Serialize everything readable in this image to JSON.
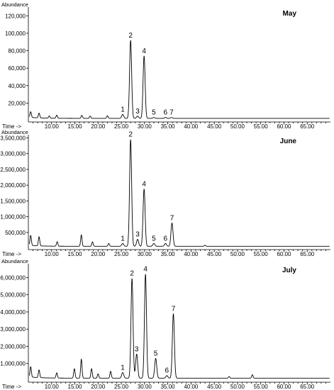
{
  "chart_data": [
    {
      "type": "line",
      "title": "May",
      "ylabel": "Abundance",
      "xlabel": "Time ->",
      "xlim": [
        5,
        70
      ],
      "ylim": [
        0,
        130000
      ],
      "xticks": [
        "10.00",
        "15.00",
        "20.00",
        "25.00",
        "30.00",
        "35.00",
        "40.00",
        "45.00",
        "50.00",
        "55.00",
        "60.00",
        "65.00"
      ],
      "yticks": [
        "20000",
        "40000",
        "60000",
        "80000",
        "100000",
        "120000"
      ],
      "ytick_labels": [
        "20,000",
        "40,000",
        "60,000",
        "80,000",
        "100,000",
        "120,000"
      ],
      "baseline": 2500,
      "peaks": [
        {
          "label": "1",
          "x": 25.3,
          "y": 7000
        },
        {
          "label": "2",
          "x": 27.0,
          "y": 92000
        },
        {
          "label": "3",
          "x": 28.5,
          "y": 5000
        },
        {
          "label": "4",
          "x": 29.9,
          "y": 74000
        },
        {
          "label": "5",
          "x": 32.0,
          "y": 3500
        },
        {
          "label": "6",
          "x": 34.5,
          "y": 3500
        },
        {
          "label": "7",
          "x": 35.8,
          "y": 3500
        }
      ],
      "minor_peaks": [
        {
          "x": 5.5,
          "y": 9000
        },
        {
          "x": 7.3,
          "y": 8000
        },
        {
          "x": 9.5,
          "y": 5000
        },
        {
          "x": 11.1,
          "y": 6000
        },
        {
          "x": 16.5,
          "y": 6000
        },
        {
          "x": 18.3,
          "y": 5000
        },
        {
          "x": 22.0,
          "y": 5500
        }
      ]
    },
    {
      "type": "line",
      "title": "June",
      "ylabel": "Abundance",
      "xlabel": "Time ->",
      "xlim": [
        5,
        70
      ],
      "ylim": [
        0,
        3600000
      ],
      "xticks": [
        "10.00",
        "15.00",
        "20.00",
        "25.00",
        "30.00",
        "35.00",
        "40.00",
        "45.00",
        "50.00",
        "55.00",
        "60.00",
        "65.00"
      ],
      "yticks": [
        "500000",
        "1000000",
        "1500000",
        "2000000",
        "2500000",
        "3000000",
        "3500000"
      ],
      "ytick_labels": [
        "500,000",
        "1,000,000",
        "1,500,000",
        "2,000,000",
        "2,500,000",
        "3,000,000",
        "3,500,000"
      ],
      "baseline": 60000,
      "peaks": [
        {
          "label": "1",
          "x": 25.3,
          "y": 150000
        },
        {
          "label": "2",
          "x": 27.0,
          "y": 3450000
        },
        {
          "label": "3",
          "x": 28.5,
          "y": 280000
        },
        {
          "label": "4",
          "x": 29.9,
          "y": 1880000
        },
        {
          "label": "5",
          "x": 32.0,
          "y": 150000
        },
        {
          "label": "6",
          "x": 34.5,
          "y": 150000
        },
        {
          "label": "7",
          "x": 35.9,
          "y": 800000
        }
      ],
      "minor_peaks": [
        {
          "x": 5.5,
          "y": 380000
        },
        {
          "x": 7.3,
          "y": 350000
        },
        {
          "x": 11.2,
          "y": 200000
        },
        {
          "x": 16.4,
          "y": 420000
        },
        {
          "x": 18.8,
          "y": 200000
        },
        {
          "x": 22.3,
          "y": 150000
        },
        {
          "x": 43.0,
          "y": 90000
        }
      ]
    },
    {
      "type": "line",
      "title": "July",
      "ylabel": "Abundance",
      "xlabel": "Time ->",
      "xlim": [
        5,
        70
      ],
      "ylim": [
        0,
        6800000
      ],
      "xticks": [
        "10.00",
        "15.00",
        "20.00",
        "25.00",
        "30.00",
        "35.00",
        "40.00",
        "45.00",
        "50.00",
        "55.00",
        "60.00",
        "65.00"
      ],
      "yticks": [
        "1000000",
        "2000000",
        "3000000",
        "4000000",
        "5000000",
        "6000000"
      ],
      "ytick_labels": [
        "1,000,000",
        "2,000,000",
        "3,000,000",
        "4,000,000",
        "5,000,000",
        "6,000,000"
      ],
      "baseline": 150000,
      "peaks": [
        {
          "label": "1",
          "x": 25.3,
          "y": 480000
        },
        {
          "label": "2",
          "x": 27.3,
          "y": 5950000
        },
        {
          "label": "3",
          "x": 28.3,
          "y": 1550000
        },
        {
          "label": "4",
          "x": 30.2,
          "y": 6200000
        },
        {
          "label": "5",
          "x": 32.4,
          "y": 1300000
        },
        {
          "label": "6",
          "x": 34.8,
          "y": 300000
        },
        {
          "label": "7",
          "x": 36.2,
          "y": 3900000
        }
      ],
      "minor_peaks": [
        {
          "x": 5.5,
          "y": 750000
        },
        {
          "x": 7.3,
          "y": 600000
        },
        {
          "x": 11.1,
          "y": 450000
        },
        {
          "x": 14.9,
          "y": 700000
        },
        {
          "x": 16.4,
          "y": 1250000
        },
        {
          "x": 18.6,
          "y": 700000
        },
        {
          "x": 20.0,
          "y": 400000
        },
        {
          "x": 22.7,
          "y": 550000
        },
        {
          "x": 48.2,
          "y": 250000
        },
        {
          "x": 53.2,
          "y": 350000
        }
      ]
    }
  ]
}
